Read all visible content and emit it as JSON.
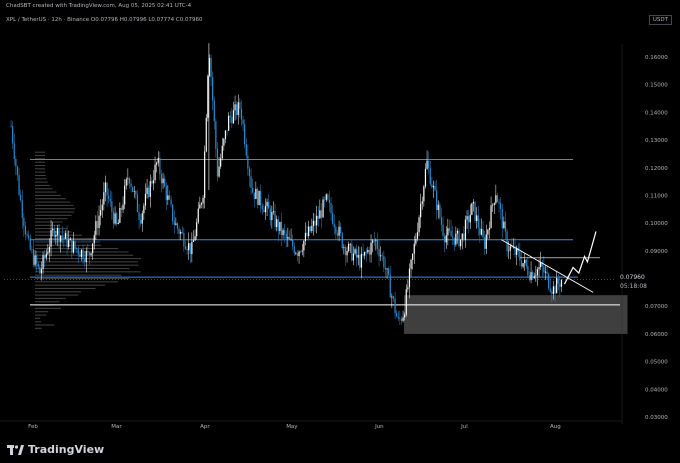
{
  "header": {
    "credit": "ChadSBT created with TradingView.com, Aug 05, 2025 02:41 UTC-4",
    "symbol_line": "XPL / TetherUS · 12h · Binance  O0.07796  H0.07996  L0.07774  C0.07960",
    "currency": "USDT"
  },
  "price_labels": {
    "last_price": "0.07960",
    "countdown": "05:18:08"
  },
  "footer": {
    "brand": "TradingView"
  },
  "colors": {
    "up": "#ffffff",
    "down": "#2e8fd6",
    "level_line": "#3a8ee6",
    "zone": "#4a4a4a",
    "background": "#000000"
  },
  "chart_data": {
    "type": "candlestick",
    "title": "XPL / TetherUS · 12h · Binance",
    "x_tick_labels": [
      "Feb",
      "Mar",
      "Apr",
      "May",
      "Jun",
      "Jul",
      "Aug"
    ],
    "y_tick_labels": [
      "0.16000",
      "0.15000",
      "0.14000",
      "0.13000",
      "0.12000",
      "0.11000",
      "0.10000",
      "0.09000",
      "0.07000",
      "0.06000",
      "0.05000",
      "0.04000",
      "0.03000"
    ],
    "ylim": [
      0.03,
      0.16
    ],
    "y_ticks": [
      0.16,
      0.15,
      0.14,
      0.13,
      0.12,
      0.11,
      0.1,
      0.09,
      0.07,
      0.06,
      0.05,
      0.04,
      0.03
    ],
    "grid": false,
    "approx_price_path": [
      [
        "Jan 24",
        0.135
      ],
      [
        "Jan 27",
        0.11
      ],
      [
        "Jan 30",
        0.092
      ],
      [
        "Feb 03",
        0.082
      ],
      [
        "Feb 08",
        0.098
      ],
      [
        "Feb 14",
        0.092
      ],
      [
        "Feb 20",
        0.088
      ],
      [
        "Feb 26",
        0.112
      ],
      [
        "Mar 02",
        0.098
      ],
      [
        "Mar 06",
        0.118
      ],
      [
        "Mar 10",
        0.102
      ],
      [
        "Mar 16",
        0.122
      ],
      [
        "Mar 22",
        0.1
      ],
      [
        "Mar 28",
        0.09
      ],
      [
        "Apr 01",
        0.112
      ],
      [
        "Apr 03",
        0.165
      ],
      [
        "Apr 06",
        0.118
      ],
      [
        "Apr 10",
        0.138
      ],
      [
        "Apr 14",
        0.142
      ],
      [
        "Apr 18",
        0.112
      ],
      [
        "Apr 24",
        0.104
      ],
      [
        "Apr 30",
        0.094
      ],
      [
        "May 04",
        0.09
      ],
      [
        "May 10",
        0.1
      ],
      [
        "May 14",
        0.108
      ],
      [
        "May 20",
        0.092
      ],
      [
        "May 26",
        0.086
      ],
      [
        "May 31",
        0.094
      ],
      [
        "Jun 03",
        0.086
      ],
      [
        "Jun 08",
        0.064
      ],
      [
        "Jun 10",
        0.068
      ],
      [
        "Jun 14",
        0.094
      ],
      [
        "Jun 18",
        0.122
      ],
      [
        "Jun 24",
        0.096
      ],
      [
        "Jun 30",
        0.094
      ],
      [
        "Jul 04",
        0.106
      ],
      [
        "Jul 08",
        0.092
      ],
      [
        "Jul 12",
        0.112
      ],
      [
        "Jul 16",
        0.092
      ],
      [
        "Jul 20",
        0.088
      ],
      [
        "Jul 24",
        0.082
      ],
      [
        "Jul 28",
        0.084
      ],
      [
        "Aug 01",
        0.076
      ],
      [
        "Aug 04",
        0.0796
      ]
    ],
    "horizontal_levels": [
      {
        "price": 0.123,
        "style": "blue"
      },
      {
        "price": 0.094,
        "style": "blue"
      },
      {
        "price": 0.0805,
        "style": "blue"
      },
      {
        "price": 0.0705,
        "style": "white"
      }
    ],
    "zones": [
      {
        "price_from": 0.06,
        "price_to": 0.074,
        "date_from": "Jun 10",
        "date_to": "Aug 27"
      }
    ],
    "trendline": {
      "from": [
        "Jul 14",
        0.094
      ],
      "to": [
        "Aug 15",
        0.075
      ]
    },
    "projection_path": [
      [
        "Aug 05",
        0.078
      ],
      [
        "Aug 08",
        0.084
      ],
      [
        "Aug 10",
        0.082
      ],
      [
        "Aug 12",
        0.088
      ],
      [
        "Aug 13",
        0.086
      ],
      [
        "Aug 16",
        0.097
      ]
    ]
  }
}
